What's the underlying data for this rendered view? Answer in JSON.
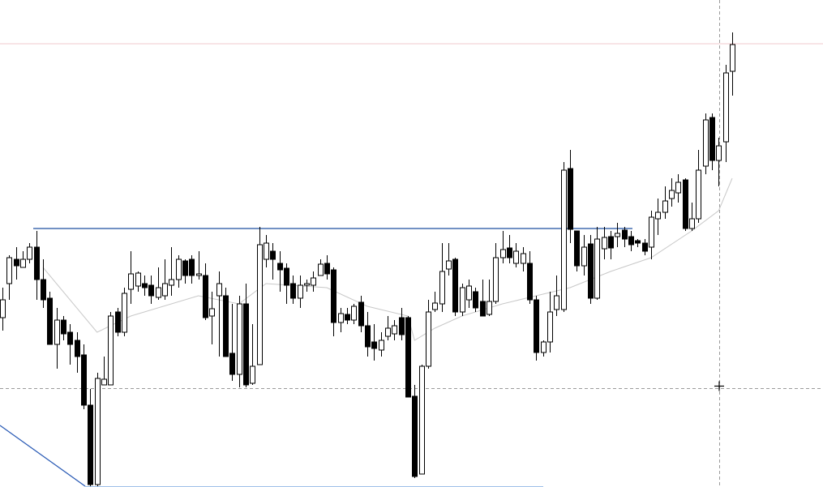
{
  "chart_data": {
    "type": "candlestick",
    "open": [
      208,
      250,
      280,
      270,
      280,
      295,
      255,
      232,
      175,
      205,
      190,
      180,
      162,
      100,
      2,
      125,
      125,
      215,
      190,
      243,
      247,
      250,
      248,
      233,
      235,
      248,
      255,
      278,
      280,
      260,
      260,
      210,
      235,
      235,
      164,
      138,
      225,
      127,
      150,
      280,
      290,
      275,
      269,
      250,
      232,
      248,
      248,
      260,
      275,
      267,
      202,
      212,
      205,
      227,
      198,
      178,
      168,
      185,
      188,
      208,
      208,
      111,
      15,
      148,
      218,
      225,
      268,
      280,
      215,
      230,
      240,
      228,
      212,
      228,
      282,
      294,
      275,
      275,
      275,
      230,
      165,
      178,
      218,
      218,
      392,
      315,
      272,
      299,
      232,
      293,
      308,
      308,
      316,
      308,
      303,
      300,
      295,
      330,
      338,
      355,
      362,
      378,
      318,
      330,
      395,
      455,
      402,
      425,
      512
    ],
    "high": [
      245,
      285,
      295,
      290,
      300,
      315,
      280,
      240,
      220,
      210,
      200,
      190,
      175,
      120,
      140,
      160,
      215,
      220,
      245,
      290,
      265,
      260,
      260,
      270,
      280,
      295,
      285,
      280,
      285,
      290,
      275,
      240,
      265,
      245,
      225,
      235,
      250,
      200,
      320,
      310,
      300,
      290,
      275,
      260,
      260,
      255,
      265,
      280,
      285,
      270,
      220,
      220,
      225,
      235,
      215,
      200,
      190,
      210,
      205,
      220,
      210,
      125,
      150,
      230,
      240,
      300,
      300,
      282,
      250,
      255,
      245,
      255,
      255,
      300,
      315,
      310,
      300,
      295,
      290,
      235,
      180,
      240,
      260,
      400,
      415,
      315,
      310,
      310,
      320,
      320,
      315,
      325,
      320,
      315,
      305,
      305,
      340,
      355,
      370,
      380,
      385,
      380,
      350,
      415,
      460,
      460,
      430,
      520,
      560
    ],
    "low": [
      192,
      230,
      255,
      270,
      275,
      230,
      220,
      175,
      145,
      180,
      150,
      140,
      95,
      0,
      0,
      125,
      125,
      185,
      185,
      225,
      240,
      235,
      225,
      230,
      230,
      235,
      245,
      250,
      250,
      255,
      205,
      175,
      160,
      160,
      130,
      122,
      122,
      125,
      150,
      270,
      255,
      240,
      225,
      225,
      220,
      240,
      240,
      260,
      255,
      185,
      190,
      200,
      200,
      190,
      160,
      155,
      160,
      180,
      180,
      180,
      110,
      10,
      15,
      145,
      215,
      215,
      260,
      210,
      210,
      220,
      215,
      210,
      210,
      225,
      275,
      275,
      270,
      265,
      225,
      155,
      160,
      165,
      210,
      215,
      300,
      265,
      260,
      225,
      230,
      280,
      280,
      295,
      295,
      290,
      295,
      285,
      280,
      310,
      330,
      345,
      350,
      315,
      315,
      325,
      385,
      390,
      370,
      400,
      482
    ],
    "close": [
      230,
      282,
      272,
      280,
      295,
      255,
      230,
      175,
      205,
      188,
      175,
      160,
      100,
      2,
      133,
      132,
      210,
      190,
      238,
      262,
      263,
      245,
      235,
      245,
      250,
      255,
      280,
      260,
      260,
      262,
      208,
      219,
      250,
      160,
      138,
      225,
      125,
      148,
      298,
      300,
      280,
      267,
      248,
      232,
      248,
      250,
      257,
      274,
      262,
      202,
      213,
      205,
      222,
      198,
      172,
      170,
      180,
      195,
      198,
      187,
      110,
      12,
      148,
      215,
      226,
      265,
      278,
      215,
      245,
      247,
      220,
      210,
      228,
      282,
      292,
      282,
      290,
      287,
      230,
      165,
      178,
      215,
      235,
      390,
      317,
      272,
      295,
      232,
      305,
      307,
      294,
      312,
      305,
      298,
      300,
      290,
      332,
      338,
      352,
      365,
      375,
      318,
      330,
      390,
      452,
      402,
      420,
      510,
      545
    ],
    "up_color": "#ffffff",
    "down_color": "#000000",
    "outline_color": "#000000",
    "ylim": [
      0,
      600
    ],
    "moving_average": {
      "color": "#c8c8c8",
      "x": [
        6,
        14,
        19,
        29,
        35,
        39,
        48,
        54,
        60,
        61,
        64,
        68,
        74,
        79,
        84,
        90,
        96,
        102,
        106,
        108
      ],
      "values": [
        270,
        190,
        210,
        235,
        225,
        250,
        245,
        222,
        210,
        180,
        195,
        210,
        225,
        235,
        245,
        265,
        282,
        315,
        340,
        380
      ]
    }
  }
}
